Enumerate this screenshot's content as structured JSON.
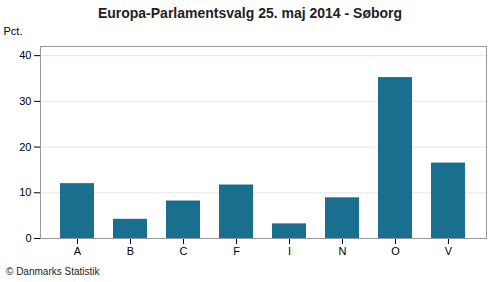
{
  "chart_data": {
    "type": "bar",
    "title": "Europa-Parlamentsvalg 25. maj 2014 - Søborg",
    "categories": [
      "A",
      "B",
      "C",
      "F",
      "I",
      "N",
      "O",
      "V"
    ],
    "values": [
      12.0,
      4.2,
      8.2,
      11.7,
      3.2,
      8.9,
      35.2,
      16.5
    ],
    "color": "#1a6e8e",
    "ylabel": "Pct.",
    "caption": "© Danmarks Statistik",
    "ylim": [
      0,
      42
    ],
    "yticks": [
      0,
      10,
      20,
      30,
      40
    ],
    "grid": true
  }
}
